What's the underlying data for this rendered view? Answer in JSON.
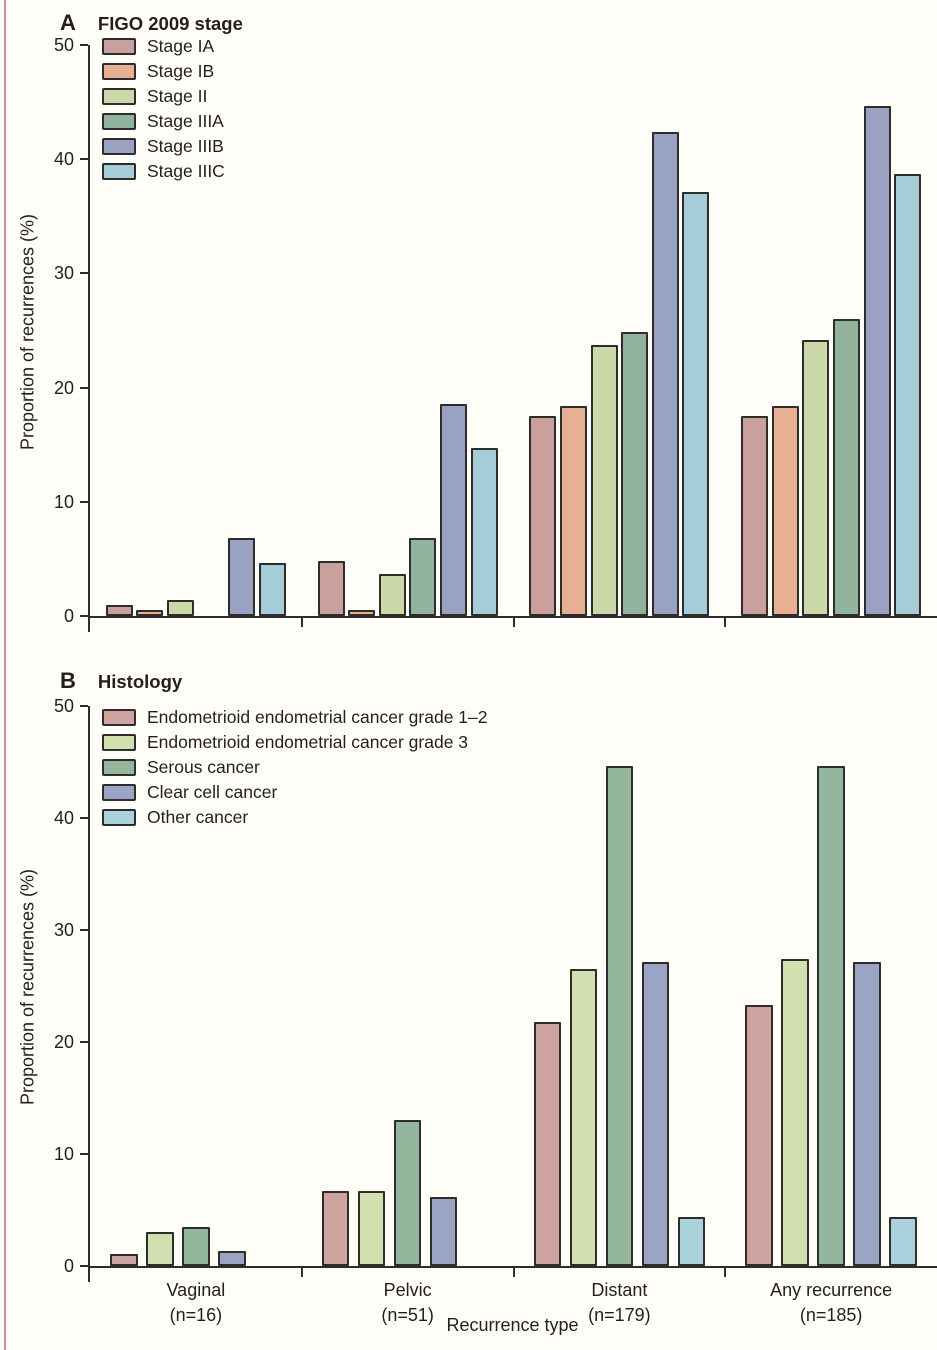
{
  "colors": {
    "background": "#fffef9",
    "text": "#231f20",
    "axis": "#2e2d2c",
    "bar_outline": "#2e2d2c",
    "left_border_line": "#cb8f99"
  },
  "chart_data": [
    {
      "type": "bar",
      "panel_label": "A",
      "title": "FIGO 2009 stage",
      "ylabel": "Proportion of recurrences (%)",
      "xlabel": "Recurrence type",
      "ylim": [
        0,
        50
      ],
      "yticks": [
        0,
        10,
        20,
        30,
        40,
        50
      ],
      "grid": false,
      "legend_position": "upper-left-inside",
      "show_category_labels": false,
      "categories": [
        "Vaginal",
        "Pelvic",
        "Distant",
        "Any recurrence"
      ],
      "category_counts": [
        "(n=16)",
        "(n=51)",
        "(n=179)",
        "(n=185)"
      ],
      "series": [
        {
          "name": "Stage IA",
          "color": "#caa09c",
          "values": [
            1.0,
            4.8,
            17.5,
            17.5
          ]
        },
        {
          "name": "Stage IB",
          "color": "#e8b092",
          "values": [
            0.5,
            0.5,
            18.4,
            18.4
          ]
        },
        {
          "name": "Stage II",
          "color": "#cbd9a9",
          "values": [
            1.4,
            3.7,
            23.7,
            24.2
          ]
        },
        {
          "name": "Stage IIIA",
          "color": "#92b49d",
          "values": [
            0,
            6.8,
            24.9,
            26.0
          ]
        },
        {
          "name": "Stage IIIB",
          "color": "#99a2c3",
          "values": [
            6.8,
            18.6,
            42.4,
            44.7
          ]
        },
        {
          "name": "Stage IIIC",
          "color": "#a5cdd7",
          "values": [
            4.6,
            14.7,
            37.1,
            38.7
          ]
        }
      ]
    },
    {
      "type": "bar",
      "panel_label": "B",
      "title": "Histology",
      "ylabel": "Proportion of recurrences (%)",
      "xlabel": "Recurrence type",
      "ylim": [
        0,
        50
      ],
      "yticks": [
        0,
        10,
        20,
        30,
        40,
        50
      ],
      "grid": false,
      "legend_position": "upper-left-inside",
      "show_category_labels": true,
      "categories": [
        "Vaginal",
        "Pelvic",
        "Distant",
        "Any recurrence"
      ],
      "category_counts": [
        "(n=16)",
        "(n=51)",
        "(n=179)",
        "(n=185)"
      ],
      "series": [
        {
          "name": "Endometrioid endometrial cancer grade 1–2",
          "color": "#cfa3a0",
          "values": [
            1.1,
            6.7,
            21.8,
            23.3
          ]
        },
        {
          "name": "Endometrioid endometrial cancer grade 3",
          "color": "#d2e0b0",
          "values": [
            3.0,
            6.7,
            26.5,
            27.4
          ]
        },
        {
          "name": "Serous cancer",
          "color": "#94b69c",
          "values": [
            3.5,
            13.0,
            44.6,
            44.6
          ]
        },
        {
          "name": "Clear cell cancer",
          "color": "#9aa4c4",
          "values": [
            1.3,
            6.2,
            27.1,
            27.1
          ]
        },
        {
          "name": "Other cancer",
          "color": "#a9d2dc",
          "values": [
            0,
            0,
            4.4,
            4.4
          ]
        }
      ]
    }
  ]
}
